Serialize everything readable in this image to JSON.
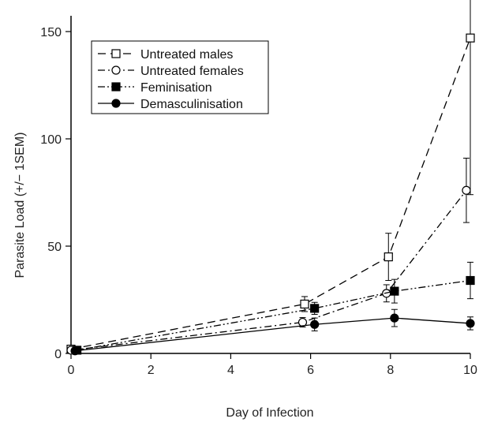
{
  "chart_data": {
    "type": "line",
    "title": "",
    "xlabel": "Day of Infection",
    "ylabel": "Parasite Load (+/− 1SEM)",
    "xlim": [
      0,
      10
    ],
    "ylim": [
      0,
      150
    ],
    "xticks": [
      0,
      2,
      4,
      6,
      8,
      10
    ],
    "yticks": [
      0,
      50,
      100,
      150
    ],
    "grid": false,
    "legend_position": "top-left",
    "series": [
      {
        "name": "Untreated males",
        "marker": "open-square",
        "line": "dashed",
        "x": [
          0,
          5.85,
          7.95,
          10
        ],
        "y": [
          2,
          23,
          45,
          147
        ],
        "err": [
          0.8,
          3.5,
          11,
          73
        ]
      },
      {
        "name": "Untreated females",
        "marker": "open-circle",
        "line": "dashdot",
        "x": [
          0,
          5.8,
          7.9,
          9.9
        ],
        "y": [
          1.5,
          14.5,
          28,
          76
        ],
        "err": [
          0.6,
          2.2,
          4,
          15
        ]
      },
      {
        "name": "Feminisation",
        "marker": "filled-square",
        "line": "dashdotdot",
        "x": [
          0.15,
          6.1,
          8.1,
          10
        ],
        "y": [
          1.5,
          21,
          29,
          34
        ],
        "err": [
          0.6,
          2.8,
          5.5,
          8.5
        ]
      },
      {
        "name": "Demasculinisation",
        "marker": "filled-circle",
        "line": "solid",
        "x": [
          0.1,
          6.1,
          8.1,
          10
        ],
        "y": [
          1.2,
          13.5,
          16.5,
          14
        ],
        "err": [
          0.5,
          3,
          4,
          3
        ]
      }
    ]
  }
}
